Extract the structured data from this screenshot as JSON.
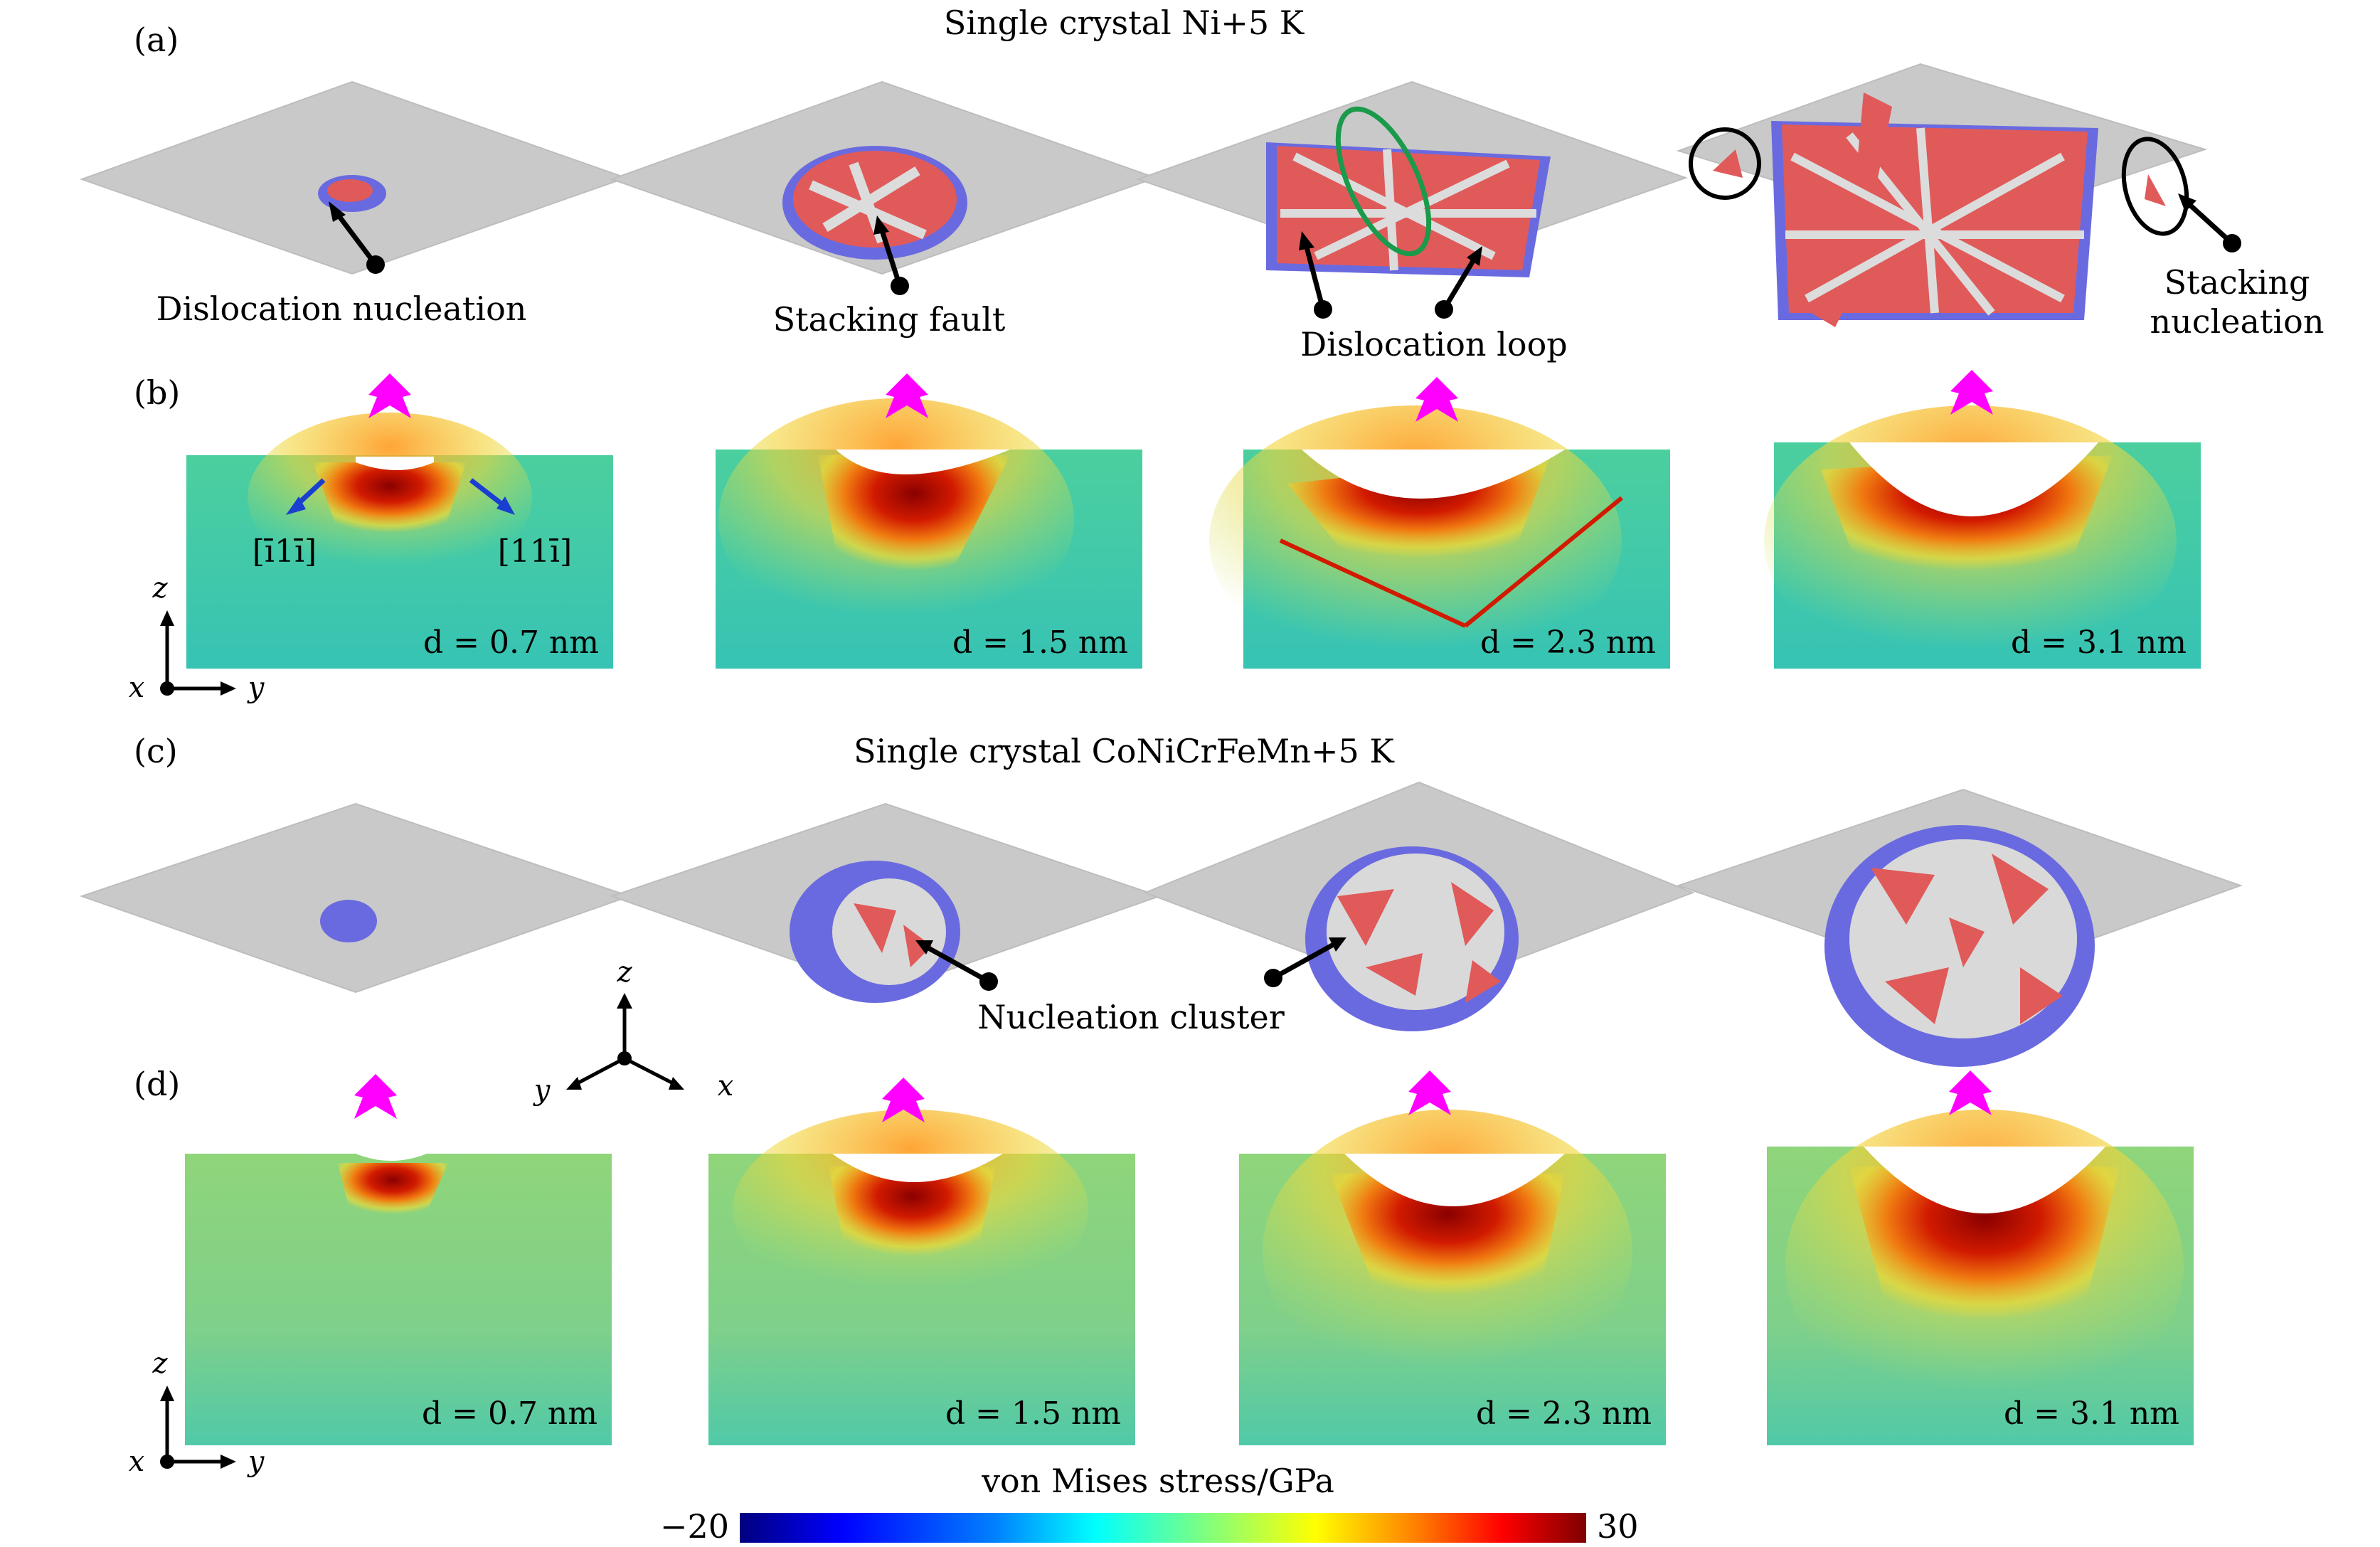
{
  "panel_a": {
    "label": "(a)",
    "title": "Single crystal Ni+5 K",
    "annotations": {
      "dislocation_nucleation": "Dislocation nucleation",
      "stacking_fault": "Stacking fault",
      "dislocation_loop": "Dislocation loop",
      "stacking_nucleation_line1": "Stacking",
      "stacking_nucleation_line2": "nucleation"
    }
  },
  "panel_b": {
    "label": "(b)",
    "direction_left": "[ī1ī]",
    "direction_right": "[11ī]",
    "depths": [
      "d = 0.7 nm",
      "d = 1.5 nm",
      "d = 2.3 nm",
      "d = 3.1 nm"
    ],
    "axes": {
      "x": "x",
      "y": "y",
      "z": "z"
    }
  },
  "panel_c": {
    "label": "(c)",
    "title": "Single crystal CoNiCrFeMn+5 K",
    "annotations": {
      "nucleation_cluster": "Nucleation cluster"
    },
    "axes3d": {
      "x": "x",
      "y": "y",
      "z": "z"
    }
  },
  "panel_d": {
    "label": "(d)",
    "depths": [
      "d = 0.7 nm",
      "d = 1.5 nm",
      "d = 2.3 nm",
      "d = 3.1 nm"
    ],
    "axes": {
      "x": "x",
      "y": "y",
      "z": "z"
    }
  },
  "colorbar": {
    "title": "von Mises stress/GPa",
    "min_label": "−20",
    "max_label": "30",
    "min": -20,
    "max": 30,
    "colors": [
      "#00007f",
      "#0000ff",
      "#007fff",
      "#00ffff",
      "#7fff7f",
      "#ffff00",
      "#ff7f00",
      "#ff0000",
      "#7f0000"
    ]
  },
  "colors": {
    "surface": "#c8c8c8",
    "stacking_fault": "#e05a5a",
    "dislocation_atoms": "#6a6ae0",
    "stress_background": "#45c9a6",
    "indenter_arrow": "#ff00ff",
    "loop_ellipse": "#1a9a4a",
    "direction_arrow": "#1a3fd0"
  }
}
